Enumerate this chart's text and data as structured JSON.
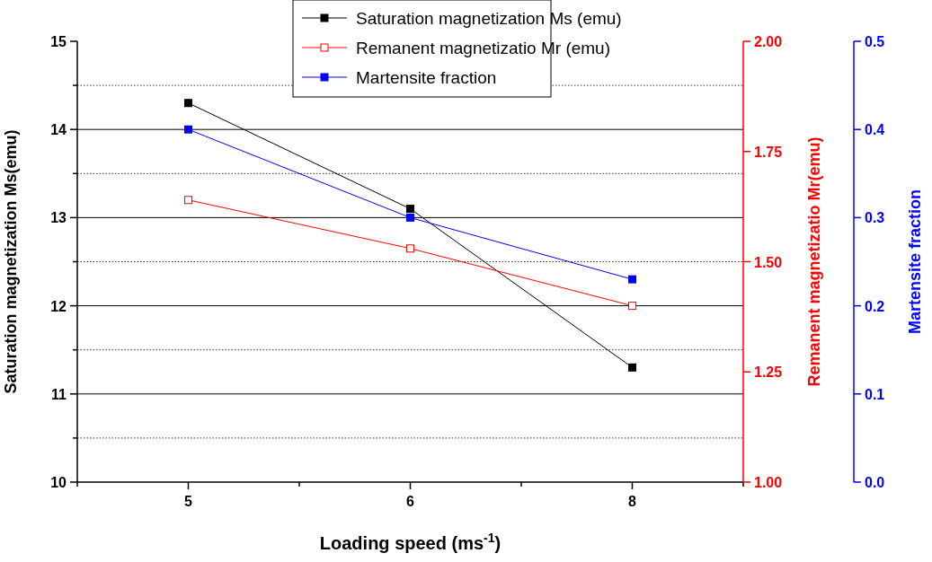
{
  "chart_data": {
    "type": "line",
    "xlabel": "Loading speed (ms$^{-1}$)",
    "ylabel": "Saturation magnetization Ms(emu)",
    "y2label": "Remanent magnetizatio Mr(emu)",
    "y3label": "Martensite fraction",
    "categories": [
      "5",
      "6",
      "8"
    ],
    "ylim": [
      10,
      15
    ],
    "yticks": [
      10,
      {
        "value": 10.5,
        "label": null
      },
      11,
      {
        "value": 11.5,
        "label": null
      },
      12,
      {
        "value": 12.5,
        "label": null
      },
      13,
      {
        "value": 13.5,
        "label": null
      },
      14,
      {
        "value": 14.5,
        "label": null
      },
      15
    ],
    "y2lim": [
      1.0,
      2.0
    ],
    "y2ticks": [
      {
        "value": 1.0,
        "label": "1.00"
      },
      {
        "value": 1.25,
        "label": "1.25"
      },
      {
        "value": 1.5,
        "label": "1.50"
      },
      {
        "value": 1.75,
        "label": "1.75"
      },
      {
        "value": 2.0,
        "label": "2.00"
      }
    ],
    "y3lim": [
      0,
      0.5
    ],
    "y3ticks": [
      {
        "value": 0,
        "label": "0.0"
      },
      0.1,
      0.2,
      0.3,
      0.4,
      0.5
    ],
    "grid": "y",
    "legend": "top",
    "marker": "square",
    "line_style": "solid",
    "series": [
      {
        "name": "Saturation magnetization Ms (emu)",
        "color": "#000000",
        "values": [
          14.3,
          13.1,
          11.3
        ]
      },
      {
        "name": "Remanent magnetizatio Mr (emu)",
        "color": "#ff0000",
        "axis": "y2",
        "marker": "square-open",
        "values": [
          1.64,
          1.53,
          1.4
        ]
      },
      {
        "name": "Martensite fraction",
        "color": "#0000ff",
        "axis": "y3",
        "values": [
          0.4,
          0.3,
          0.23
        ]
      }
    ]
  }
}
